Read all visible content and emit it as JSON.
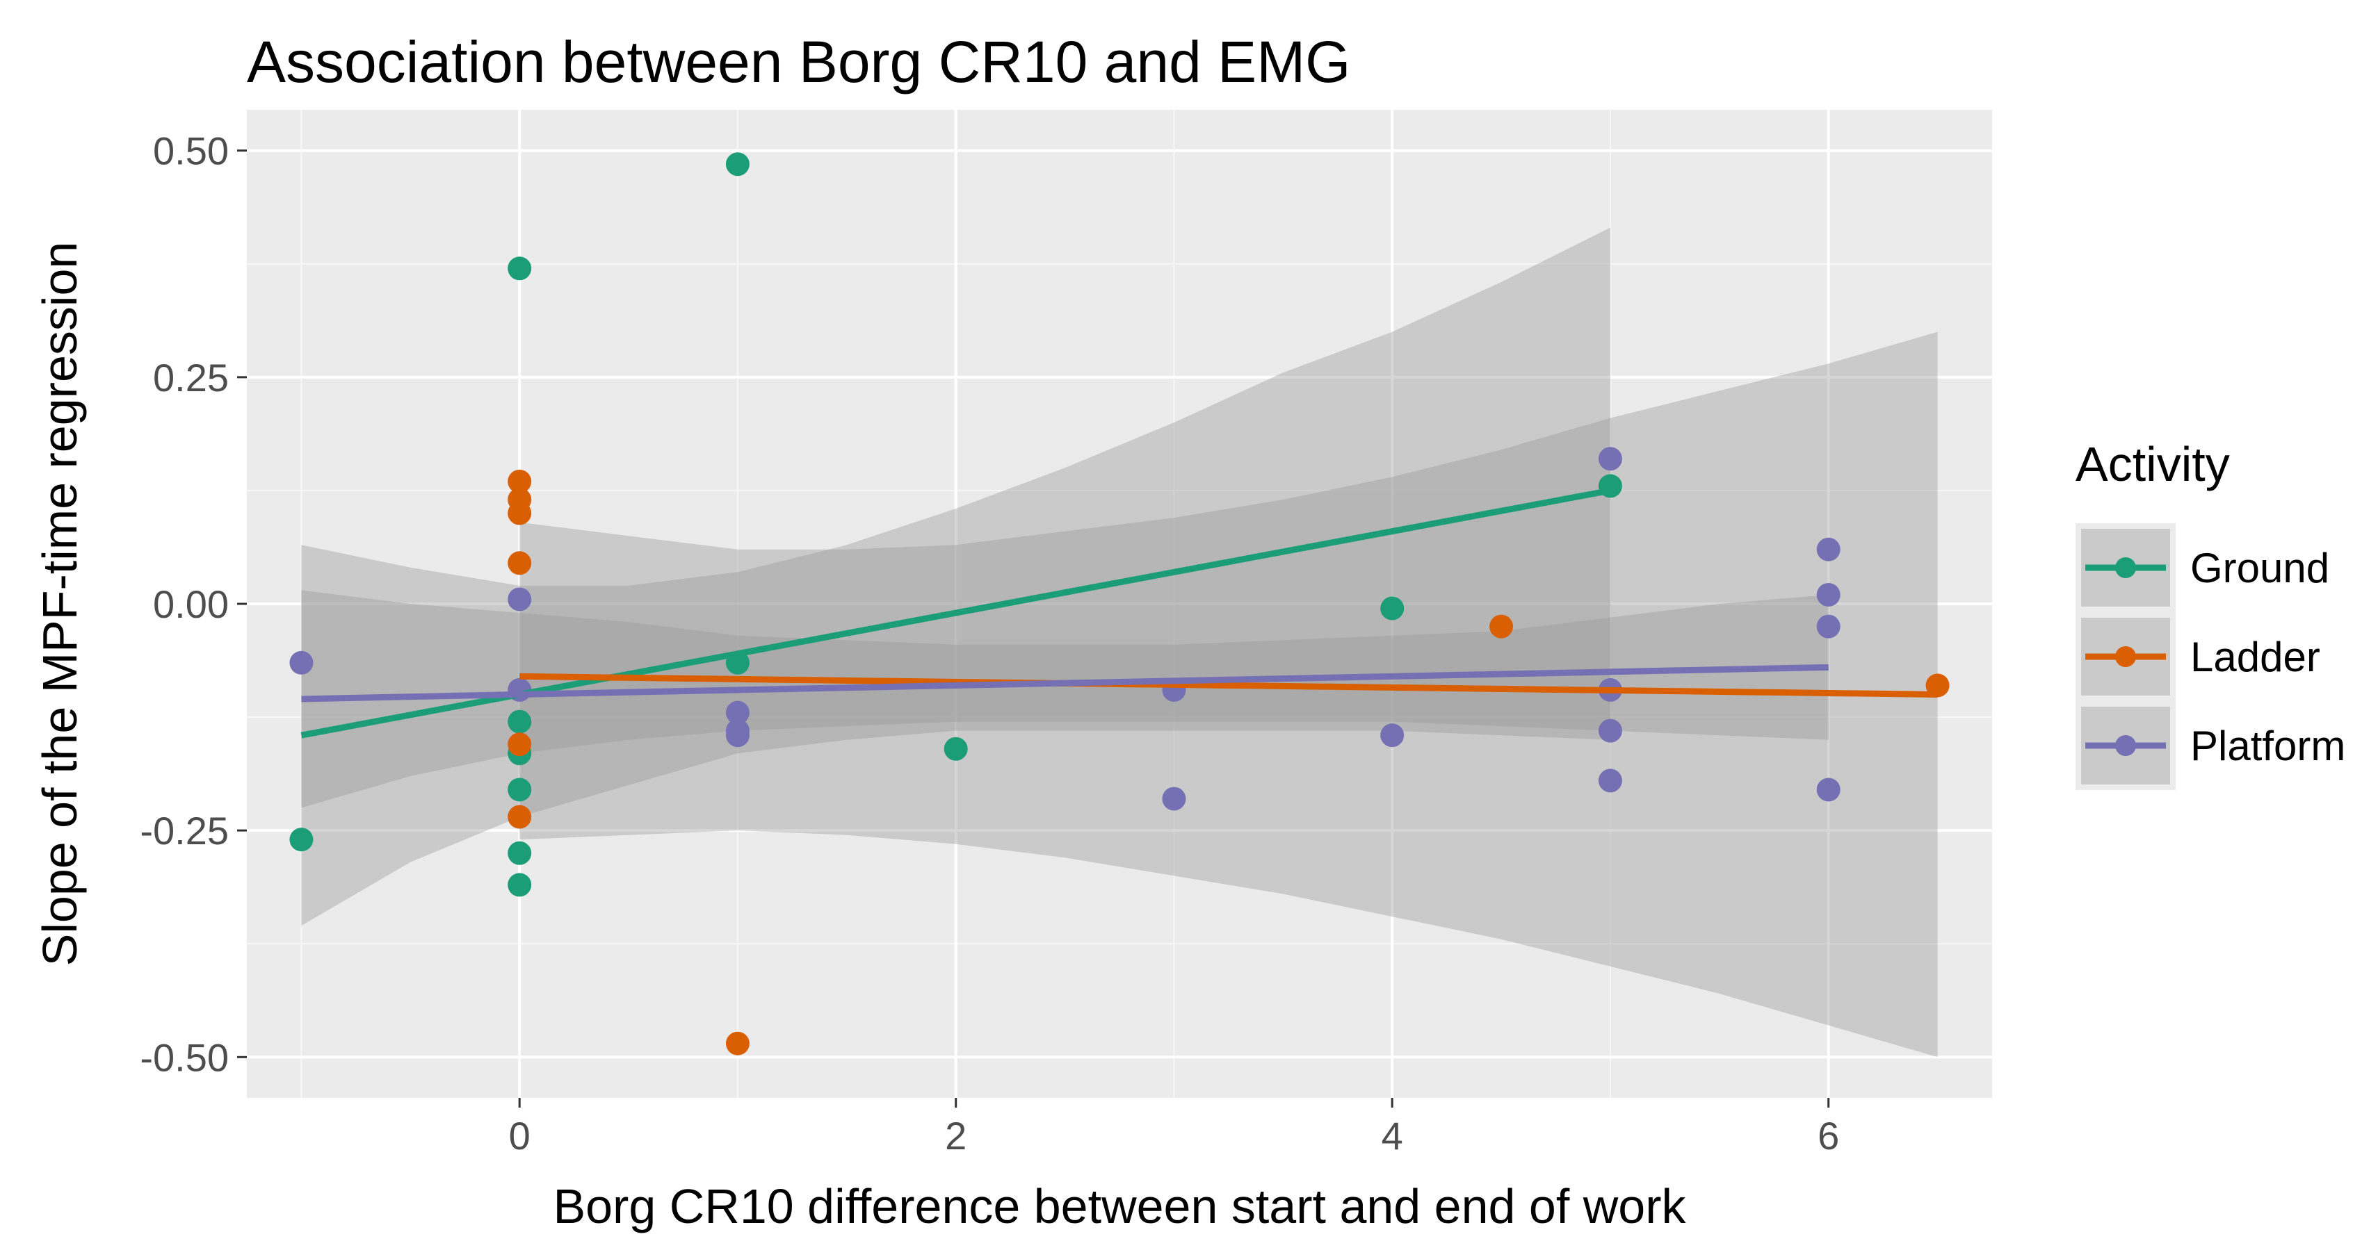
{
  "chart_data": {
    "type": "scatter",
    "title": "Association between Borg CR10 and EMG",
    "xlabel": "Borg CR10 difference between start and end of work",
    "ylabel": "Slope of the MPF-time regression",
    "xlim": [
      -1.25,
      6.75
    ],
    "ylim": [
      -0.545,
      0.545
    ],
    "xticks": [
      0,
      2,
      4,
      6
    ],
    "xtick_labels": [
      "0",
      "2",
      "4",
      "6"
    ],
    "yticks": [
      0.5,
      0.25,
      0.0,
      -0.25,
      -0.5
    ],
    "ytick_labels": [
      "0.50",
      "0.25",
      "0.00",
      "-0.25",
      "-0.50"
    ],
    "grid": true,
    "legend": {
      "title": "Activity",
      "position": "right"
    },
    "series": [
      {
        "name": "Ground",
        "color": "#1b9e77",
        "points": [
          {
            "x": -1,
            "y": -0.26
          },
          {
            "x": 0,
            "y": 0.37
          },
          {
            "x": 0,
            "y": -0.13
          },
          {
            "x": 0,
            "y": -0.165
          },
          {
            "x": 0,
            "y": -0.205
          },
          {
            "x": 0,
            "y": -0.275
          },
          {
            "x": 0,
            "y": -0.31
          },
          {
            "x": 1,
            "y": 0.485
          },
          {
            "x": 1,
            "y": -0.065
          },
          {
            "x": 2,
            "y": -0.16
          },
          {
            "x": 4,
            "y": -0.005
          },
          {
            "x": 5,
            "y": 0.13
          }
        ],
        "fit": {
          "x": [
            -1,
            5
          ],
          "y": [
            -0.145,
            0.125
          ]
        },
        "band": {
          "x": [
            -1,
            -0.5,
            0,
            0.5,
            1,
            1.5,
            2,
            2.5,
            3,
            3.5,
            4,
            4.5,
            5
          ],
          "lower": [
            -0.355,
            -0.285,
            -0.235,
            -0.2,
            -0.165,
            -0.15,
            -0.14,
            -0.14,
            -0.14,
            -0.14,
            -0.14,
            -0.145,
            -0.15
          ],
          "upper": [
            0.065,
            0.04,
            0.02,
            0.02,
            0.035,
            0.065,
            0.105,
            0.15,
            0.2,
            0.255,
            0.3,
            0.355,
            0.415
          ]
        }
      },
      {
        "name": "Ladder",
        "color": "#d95f02",
        "points": [
          {
            "x": 0,
            "y": 0.135
          },
          {
            "x": 0,
            "y": 0.115
          },
          {
            "x": 0,
            "y": 0.1
          },
          {
            "x": 0,
            "y": 0.045
          },
          {
            "x": 0,
            "y": -0.155
          },
          {
            "x": 0,
            "y": -0.235
          },
          {
            "x": 1,
            "y": -0.485
          },
          {
            "x": 4.5,
            "y": -0.025
          },
          {
            "x": 6.5,
            "y": -0.09
          }
        ],
        "fit": {
          "x": [
            0,
            6.5
          ],
          "y": [
            -0.08,
            -0.1
          ]
        },
        "band": {
          "x": [
            0,
            0.5,
            1,
            1.5,
            2,
            2.5,
            3,
            3.5,
            4,
            4.5,
            5,
            5.5,
            6,
            6.5
          ],
          "lower": [
            -0.26,
            -0.255,
            -0.25,
            -0.255,
            -0.265,
            -0.28,
            -0.3,
            -0.32,
            -0.345,
            -0.37,
            -0.4,
            -0.43,
            -0.465,
            -0.5
          ],
          "upper": [
            0.09,
            0.075,
            0.06,
            0.06,
            0.065,
            0.08,
            0.095,
            0.115,
            0.14,
            0.17,
            0.205,
            0.235,
            0.265,
            0.3
          ]
        }
      },
      {
        "name": "Platform",
        "color": "#7570b3",
        "points": [
          {
            "x": -1,
            "y": -0.065
          },
          {
            "x": 0,
            "y": 0.005
          },
          {
            "x": 0,
            "y": -0.095
          },
          {
            "x": 1,
            "y": -0.12
          },
          {
            "x": 1,
            "y": -0.14
          },
          {
            "x": 1,
            "y": -0.145
          },
          {
            "x": 3,
            "y": -0.095
          },
          {
            "x": 3,
            "y": -0.215
          },
          {
            "x": 4,
            "y": -0.145
          },
          {
            "x": 5,
            "y": 0.16
          },
          {
            "x": 5,
            "y": -0.095
          },
          {
            "x": 5,
            "y": -0.14
          },
          {
            "x": 5,
            "y": -0.195
          },
          {
            "x": 6,
            "y": 0.06
          },
          {
            "x": 6,
            "y": 0.01
          },
          {
            "x": 6,
            "y": -0.025
          },
          {
            "x": 6,
            "y": -0.205
          }
        ],
        "fit": {
          "x": [
            -1,
            6
          ],
          "y": [
            -0.105,
            -0.07
          ]
        },
        "band": {
          "x": [
            -1,
            -0.5,
            0,
            0.5,
            1,
            1.5,
            2,
            2.5,
            3,
            3.5,
            4,
            4.5,
            5,
            5.5,
            6
          ],
          "lower": [
            -0.225,
            -0.19,
            -0.165,
            -0.15,
            -0.14,
            -0.135,
            -0.13,
            -0.13,
            -0.13,
            -0.13,
            -0.13,
            -0.135,
            -0.14,
            -0.145,
            -0.15
          ],
          "upper": [
            0.015,
            0.0,
            -0.01,
            -0.02,
            -0.035,
            -0.04,
            -0.045,
            -0.045,
            -0.045,
            -0.04,
            -0.035,
            -0.03,
            -0.015,
            0.0,
            0.01
          ]
        }
      }
    ]
  }
}
